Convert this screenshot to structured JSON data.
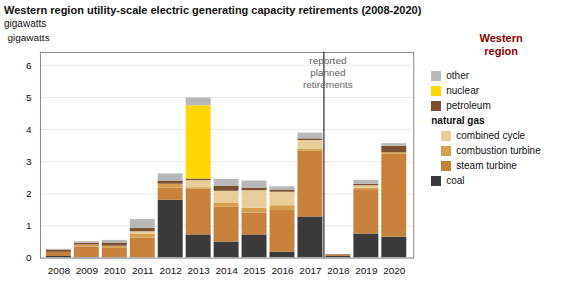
{
  "chart_data": {
    "type": "bar",
    "stacked": true,
    "title": "Western region utility-scale electric generating capacity retirements (2008-2020)",
    "subtitle": "gigawatts",
    "ylabel": "gigawatts",
    "categories": [
      "2008",
      "2009",
      "2010",
      "2011",
      "2012",
      "2013",
      "2014",
      "2015",
      "2016",
      "2017",
      "2018",
      "2019",
      "2020"
    ],
    "series": [
      {
        "name": "coal",
        "color": "#3a3a3a",
        "values": [
          0.05,
          0.02,
          0.02,
          0.0,
          1.8,
          0.72,
          0.5,
          0.72,
          0.18,
          1.28,
          0.05,
          0.75,
          0.65
        ]
      },
      {
        "name": "steam turbine",
        "group": "natural gas",
        "color": "#c8813a",
        "values": [
          0.13,
          0.32,
          0.28,
          0.62,
          0.38,
          1.42,
          1.08,
          0.68,
          1.3,
          2.05,
          0.03,
          1.38,
          2.58
        ]
      },
      {
        "name": "combustion turbine",
        "group": "natural gas",
        "color": "#d4a050",
        "values": [
          0.0,
          0.07,
          0.07,
          0.12,
          0.12,
          0.05,
          0.12,
          0.15,
          0.15,
          0.05,
          0.0,
          0.05,
          0.05
        ]
      },
      {
        "name": "combined cycle",
        "group": "natural gas",
        "color": "#e8cc9a",
        "values": [
          0.0,
          0.0,
          0.0,
          0.08,
          0.0,
          0.22,
          0.38,
          0.55,
          0.42,
          0.28,
          0.0,
          0.07,
          0.0
        ]
      },
      {
        "name": "petroleum",
        "color": "#7a5030",
        "values": [
          0.07,
          0.05,
          0.1,
          0.1,
          0.1,
          0.05,
          0.15,
          0.08,
          0.07,
          0.05,
          0.02,
          0.05,
          0.2
        ]
      },
      {
        "name": "nuclear",
        "color": "#ffd700",
        "values": [
          0.0,
          0.0,
          0.0,
          0.0,
          0.0,
          2.28,
          0.0,
          0.0,
          0.0,
          0.0,
          0.0,
          0.0,
          0.0
        ]
      },
      {
        "name": "other",
        "color": "#b8b8b8",
        "values": [
          0.02,
          0.05,
          0.08,
          0.28,
          0.22,
          0.24,
          0.22,
          0.22,
          0.1,
          0.18,
          0.0,
          0.12,
          0.08
        ]
      }
    ],
    "annotations": [
      {
        "text": "reported\nplanned\nretirements",
        "x": "2018"
      },
      {
        "text": "Western\nregion"
      }
    ],
    "ylim": [
      0,
      6.4
    ],
    "yticks": [
      0,
      1,
      2,
      3,
      4,
      5,
      6
    ],
    "grid": true
  }
}
